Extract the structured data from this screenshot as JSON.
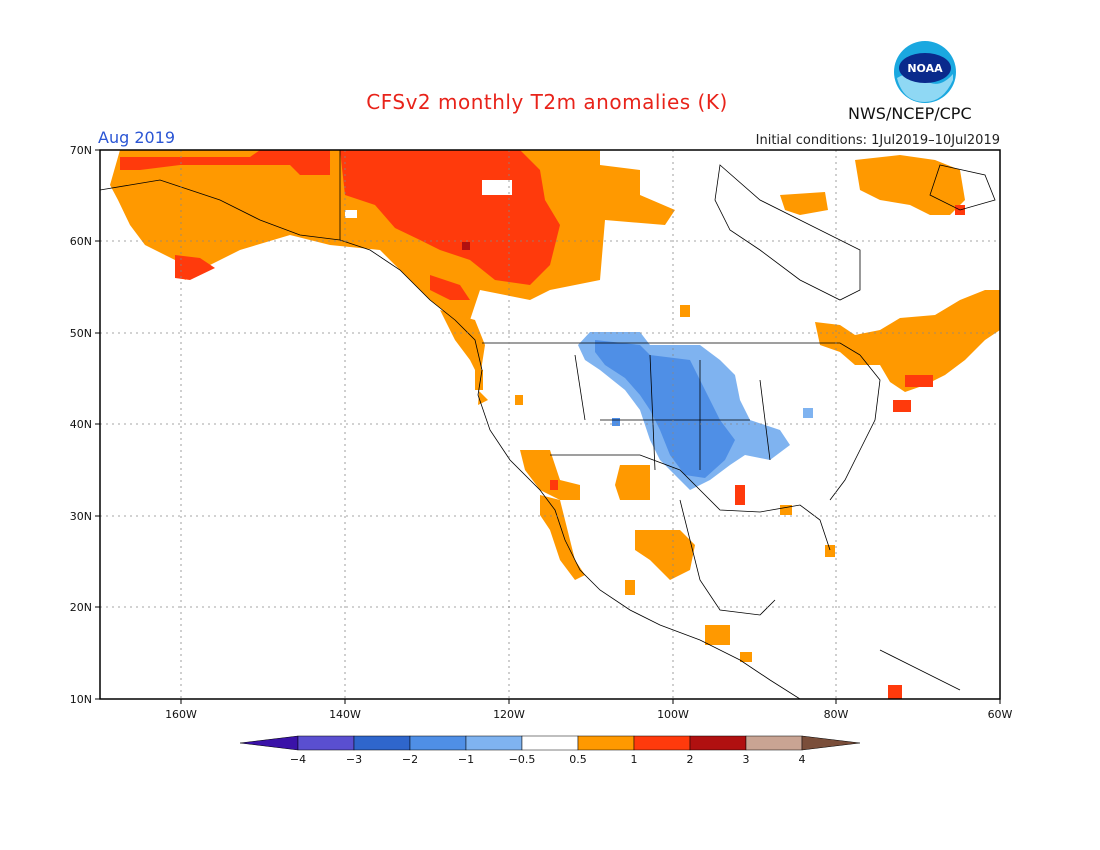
{
  "title": "CFSv2 monthly T2m anomalies (K)",
  "period": "Aug 2019",
  "initial_conditions": "Initial conditions: 1Jul2019–10Jul2019",
  "agency": "NWS/NCEP/CPC",
  "logo_text": "NOAA",
  "lat_labels": [
    "70N",
    "60N",
    "50N",
    "40N",
    "30N",
    "20N",
    "10N"
  ],
  "lon_labels": [
    "160W",
    "140W",
    "120W",
    "100W",
    "80W",
    "60W"
  ],
  "colorbar": {
    "labels": [
      "−4",
      "−3",
      "−2",
      "−1",
      "−0.5",
      "0.5",
      "1",
      "2",
      "3",
      "4"
    ],
    "colors": [
      "#3a12a8",
      "#5a4fd0",
      "#2f66cc",
      "#4f8fe6",
      "#7fb3f0",
      "#ffffff",
      "#ff9900",
      "#ff3a0c",
      "#b01010",
      "#c9a493",
      "#7a4e3a"
    ]
  },
  "anomaly_colors": {
    "warm_0.5_1": "#ff9900",
    "warm_1_2": "#ff3a0c",
    "warm_2_3": "#b01010",
    "cool_-0.5_-1": "#7fb3f0",
    "cool_-1_-2": "#4f8fe6"
  }
}
